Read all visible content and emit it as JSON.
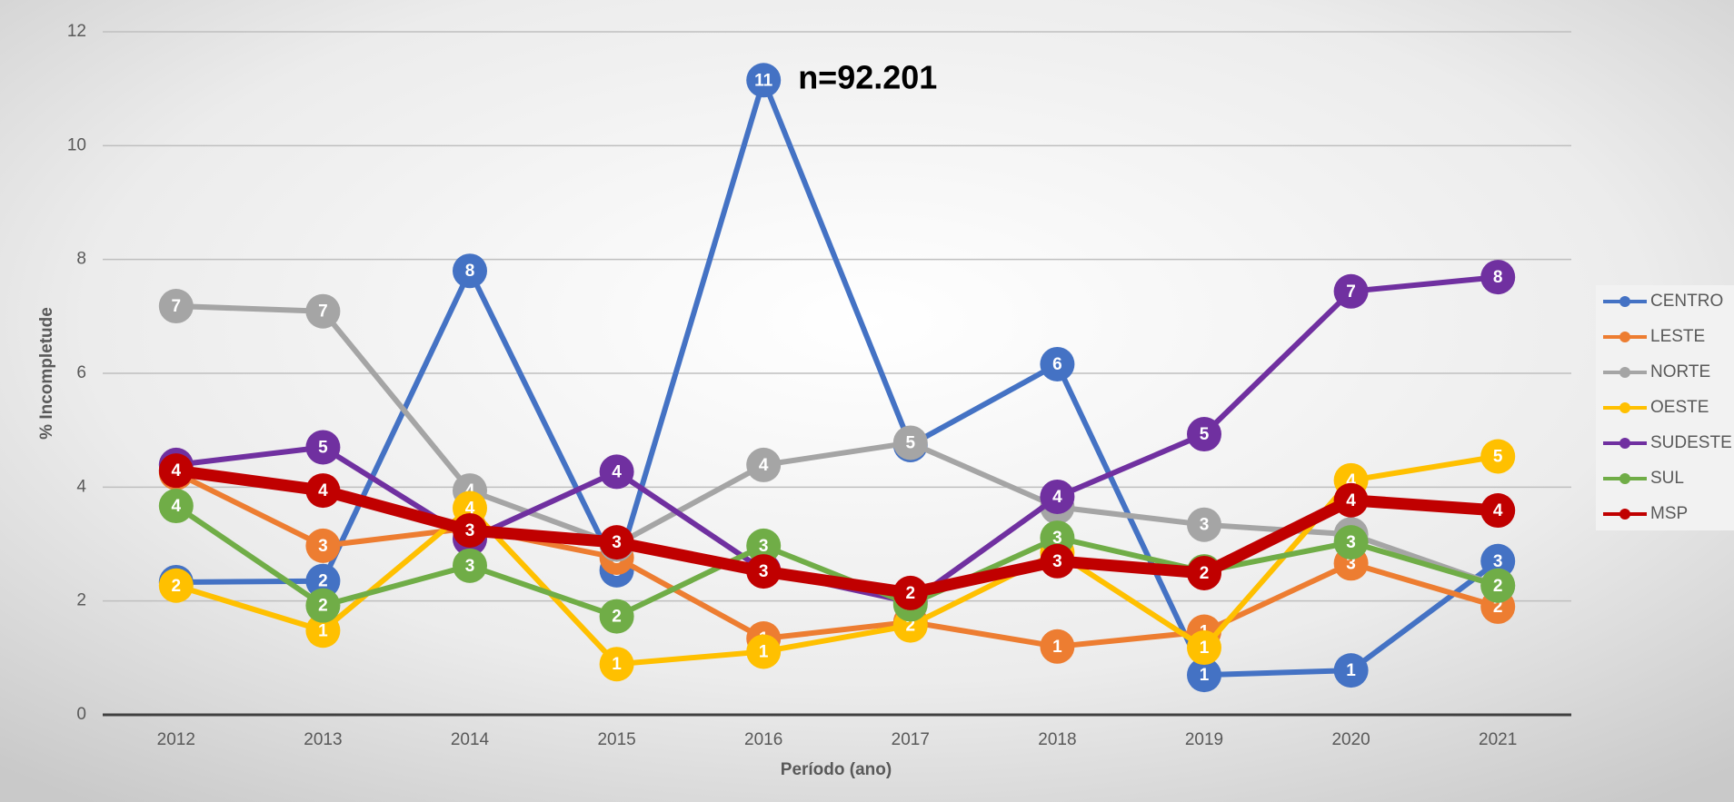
{
  "chart_data": {
    "type": "line",
    "annotation": "n=92.201",
    "x_label": "Período (ano)",
    "y_label": "% Incompletude",
    "categories": [
      "2012",
      "2013",
      "2014",
      "2015",
      "2016",
      "2017",
      "2018",
      "2019",
      "2020",
      "2021"
    ],
    "ylim": [
      0,
      12
    ],
    "yticks": [
      0,
      2,
      4,
      6,
      8,
      10,
      12
    ],
    "grid": true,
    "legend": "right",
    "series": [
      {
        "name": "CENTRO",
        "color": "#4472c4",
        "values": [
          2.33,
          2.35,
          7.8,
          2.54,
          11.15,
          4.74,
          6.16,
          0.7,
          0.78,
          2.7
        ],
        "value_labels": [
          "2",
          "2",
          "8",
          "3",
          "11",
          "5",
          "6",
          "1",
          "1",
          "3"
        ]
      },
      {
        "name": "LESTE",
        "color": "#ed7d31",
        "values": [
          4.25,
          2.97,
          3.28,
          2.76,
          1.34,
          1.63,
          1.2,
          1.46,
          2.66,
          1.9
        ],
        "value_labels": [
          "4",
          "3",
          "3",
          "3",
          "1",
          "2",
          "1",
          "1",
          "3",
          "2"
        ]
      },
      {
        "name": "NORTE",
        "color": "#a5a5a5",
        "values": [
          7.18,
          7.09,
          3.94,
          2.99,
          4.39,
          4.78,
          3.65,
          3.34,
          3.17,
          2.27
        ],
        "value_labels": [
          "7",
          "7",
          "4",
          "3",
          "4",
          "5",
          "4",
          "3",
          "3",
          "2"
        ]
      },
      {
        "name": "OESTE",
        "color": "#ffc000",
        "values": [
          2.27,
          1.48,
          3.63,
          0.89,
          1.11,
          1.57,
          2.85,
          1.18,
          4.12,
          4.54
        ],
        "value_labels": [
          "2",
          "1",
          "4",
          "1",
          "1",
          "2",
          "3",
          "1",
          "4",
          "5"
        ]
      },
      {
        "name": "SUDESTE",
        "color": "#7030a0",
        "values": [
          4.39,
          4.7,
          3.09,
          4.27,
          2.54,
          1.98,
          3.83,
          4.93,
          7.44,
          7.69
        ],
        "value_labels": [
          "4",
          "5",
          "3",
          "4",
          "3",
          "2",
          "4",
          "5",
          "7",
          "8"
        ]
      },
      {
        "name": "SUL",
        "color": "#70ad47",
        "values": [
          3.67,
          1.92,
          2.62,
          1.73,
          2.97,
          1.94,
          3.11,
          2.52,
          3.03,
          2.27
        ],
        "value_labels": [
          "4",
          "2",
          "3",
          "2",
          "3",
          "2",
          "3",
          "3",
          "3",
          "2"
        ]
      },
      {
        "name": "MSP",
        "color": "#c00000",
        "values": [
          4.29,
          3.94,
          3.24,
          3.03,
          2.52,
          2.14,
          2.7,
          2.49,
          3.77,
          3.59
        ],
        "value_labels": [
          "4",
          "4",
          "3",
          "3",
          "3",
          "2",
          "3",
          "2",
          "4",
          "4"
        ]
      }
    ]
  }
}
